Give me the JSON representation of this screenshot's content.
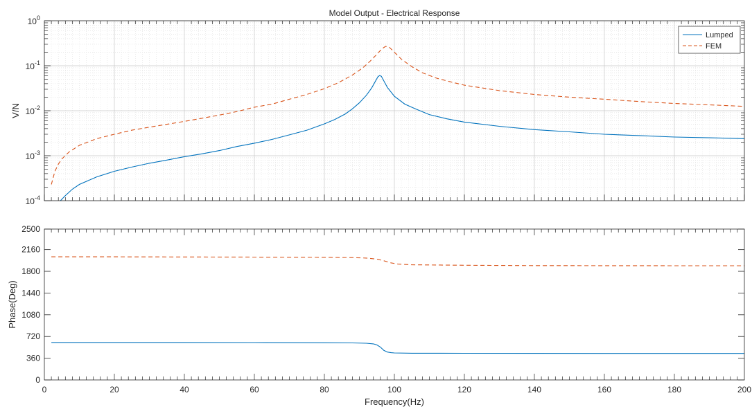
{
  "chart_data": [
    {
      "type": "line",
      "title": "Model Output - Electrical Response",
      "xlabel": "",
      "ylabel": "V/N",
      "yscale": "log",
      "xlim": [
        0,
        200
      ],
      "ylim": [
        0.0001,
        1
      ],
      "grid": true,
      "legend": "top-right",
      "x_ticks": [
        0,
        20,
        40,
        60,
        80,
        100,
        120,
        140,
        160,
        180,
        200
      ],
      "y_ticks": [
        {
          "value": 0.0001,
          "base": "10",
          "exp": "-4"
        },
        {
          "value": 0.001,
          "base": "10",
          "exp": "-3"
        },
        {
          "value": 0.01,
          "base": "10",
          "exp": "-2"
        },
        {
          "value": 0.1,
          "base": "10",
          "exp": "-1"
        },
        {
          "value": 1,
          "base": "10",
          "exp": "0"
        }
      ],
      "series": [
        {
          "name": "Lumped",
          "color": "#0072bd",
          "style": "solid",
          "points": [
            [
              4.6,
              0.0001
            ],
            [
              6,
              0.00013
            ],
            [
              8,
              0.00018
            ],
            [
              10,
              0.00023
            ],
            [
              15,
              0.00034
            ],
            [
              20,
              0.00045
            ],
            [
              25,
              0.00056
            ],
            [
              30,
              0.00068
            ],
            [
              35,
              0.0008
            ],
            [
              40,
              0.00095
            ],
            [
              45,
              0.0011
            ],
            [
              50,
              0.0013
            ],
            [
              55,
              0.0016
            ],
            [
              60,
              0.0019
            ],
            [
              65,
              0.0023
            ],
            [
              70,
              0.0029
            ],
            [
              75,
              0.0037
            ],
            [
              80,
              0.0051
            ],
            [
              83,
              0.0064
            ],
            [
              86,
              0.0085
            ],
            [
              88,
              0.011
            ],
            [
              90,
              0.015
            ],
            [
              92,
              0.022
            ],
            [
              93.5,
              0.032
            ],
            [
              94.5,
              0.044
            ],
            [
              95.3,
              0.057
            ],
            [
              95.8,
              0.061
            ],
            [
              96.3,
              0.058
            ],
            [
              97,
              0.046
            ],
            [
              98,
              0.033
            ],
            [
              100,
              0.021
            ],
            [
              103,
              0.014
            ],
            [
              106,
              0.011
            ],
            [
              110,
              0.0082
            ],
            [
              115,
              0.0066
            ],
            [
              120,
              0.0056
            ],
            [
              130,
              0.0045
            ],
            [
              140,
              0.0038
            ],
            [
              150,
              0.0034
            ],
            [
              160,
              0.003
            ],
            [
              170,
              0.0028
            ],
            [
              180,
              0.0026
            ],
            [
              190,
              0.0025
            ],
            [
              200,
              0.0024
            ]
          ]
        },
        {
          "name": "FEM",
          "color": "#d95319",
          "style": "dashed",
          "points": [
            [
              2,
              0.00023
            ],
            [
              3,
              0.00045
            ],
            [
              4,
              0.00065
            ],
            [
              5,
              0.00085
            ],
            [
              7,
              0.0012
            ],
            [
              10,
              0.0017
            ],
            [
              15,
              0.0024
            ],
            [
              20,
              0.003
            ],
            [
              25,
              0.0037
            ],
            [
              30,
              0.0043
            ],
            [
              35,
              0.005
            ],
            [
              40,
              0.0058
            ],
            [
              45,
              0.0068
            ],
            [
              50,
              0.008
            ],
            [
              55,
              0.0096
            ],
            [
              60,
              0.012
            ],
            [
              65,
              0.014
            ],
            [
              70,
              0.018
            ],
            [
              75,
              0.023
            ],
            [
              80,
              0.031
            ],
            [
              84,
              0.042
            ],
            [
              88,
              0.062
            ],
            [
              91,
              0.09
            ],
            [
              93,
              0.125
            ],
            [
              95,
              0.18
            ],
            [
              96.5,
              0.24
            ],
            [
              97.5,
              0.27
            ],
            [
              98.5,
              0.26
            ],
            [
              100,
              0.2
            ],
            [
              102,
              0.14
            ],
            [
              105,
              0.095
            ],
            [
              108,
              0.07
            ],
            [
              112,
              0.053
            ],
            [
              116,
              0.044
            ],
            [
              120,
              0.037
            ],
            [
              130,
              0.028
            ],
            [
              140,
              0.023
            ],
            [
              150,
              0.02
            ],
            [
              160,
              0.018
            ],
            [
              170,
              0.016
            ],
            [
              180,
              0.0145
            ],
            [
              190,
              0.0135
            ],
            [
              200,
              0.0125
            ]
          ]
        }
      ]
    },
    {
      "type": "line",
      "title": "",
      "xlabel": "Frequency(Hz)",
      "ylabel": "Phase(Deg)",
      "yscale": "linear",
      "xlim": [
        0,
        200
      ],
      "ylim": [
        0,
        2500
      ],
      "grid": false,
      "x_ticks": [
        0,
        20,
        40,
        60,
        80,
        100,
        120,
        140,
        160,
        180,
        200
      ],
      "y_ticks": [
        0,
        360,
        720,
        1080,
        1440,
        1800,
        2160,
        2500
      ],
      "series": [
        {
          "name": "Lumped",
          "color": "#0072bd",
          "style": "solid",
          "points": [
            [
              2,
              620
            ],
            [
              20,
              620
            ],
            [
              40,
              620
            ],
            [
              60,
              619
            ],
            [
              80,
              616
            ],
            [
              88,
              613
            ],
            [
              92,
              608
            ],
            [
              94,
              598
            ],
            [
              95,
              580
            ],
            [
              96,
              545
            ],
            [
              97,
              490
            ],
            [
              98,
              462
            ],
            [
              99,
              452
            ],
            [
              100,
              447
            ],
            [
              105,
              443
            ],
            [
              120,
              441
            ],
            [
              140,
              440
            ],
            [
              160,
              439
            ],
            [
              180,
              439
            ],
            [
              200,
              439
            ]
          ]
        },
        {
          "name": "FEM",
          "color": "#d95319",
          "style": "dashed",
          "points": [
            [
              2,
              2040
            ],
            [
              20,
              2040
            ],
            [
              40,
              2038
            ],
            [
              60,
              2036
            ],
            [
              80,
              2032
            ],
            [
              88,
              2028
            ],
            [
              92,
              2020
            ],
            [
              95,
              2002
            ],
            [
              97,
              1975
            ],
            [
              99,
              1940
            ],
            [
              101,
              1920
            ],
            [
              105,
              1908
            ],
            [
              120,
              1900
            ],
            [
              140,
              1895
            ],
            [
              160,
              1893
            ],
            [
              180,
              1892
            ],
            [
              200,
              1892
            ]
          ]
        }
      ]
    }
  ]
}
